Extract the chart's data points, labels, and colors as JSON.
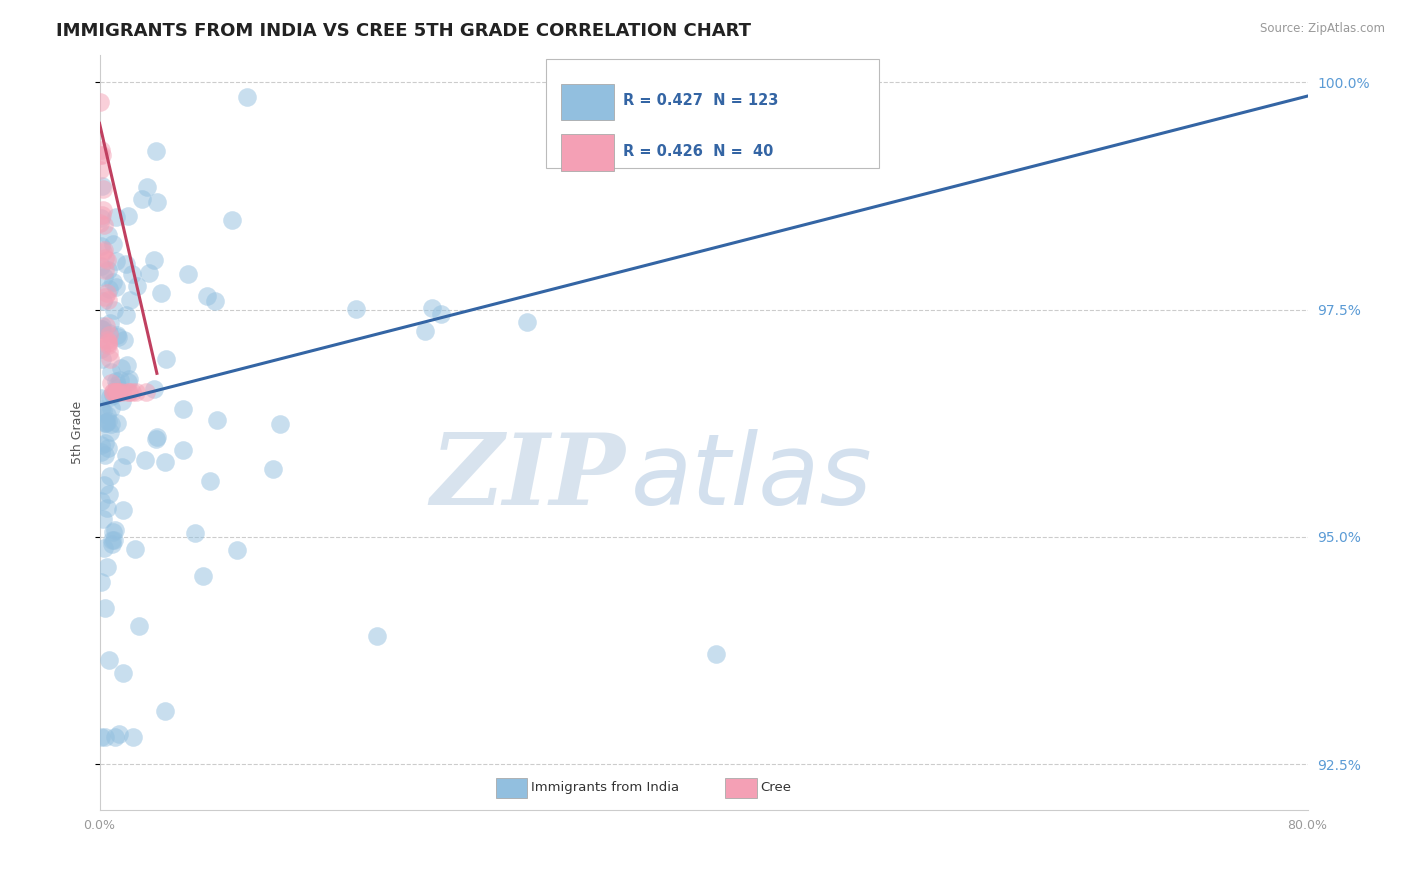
{
  "title": "IMMIGRANTS FROM INDIA VS CREE 5TH GRADE CORRELATION CHART",
  "source_text": "Source: ZipAtlas.com",
  "ylabel": "5th Grade",
  "xlim": [
    0.0,
    0.8
  ],
  "ylim": [
    0.92,
    1.003
  ],
  "xtick_vals": [
    0.0,
    0.2,
    0.4,
    0.6,
    0.8
  ],
  "xtick_labels": [
    "0.0%",
    "",
    "",
    "",
    "80.0%"
  ],
  "ytick_vals": [
    0.925,
    0.95,
    0.975,
    1.0
  ],
  "ytick_labels": [
    "92.5%",
    "95.0%",
    "97.5%",
    "100.0%"
  ],
  "blue_color": "#92bfdf",
  "pink_color": "#f4a0b5",
  "blue_line_color": "#3465a4",
  "pink_line_color": "#c04060",
  "blue_trend_x": [
    0.0,
    0.8
  ],
  "blue_trend_y": [
    0.9645,
    0.9985
  ],
  "pink_trend_x": [
    0.0,
    0.038
  ],
  "pink_trend_y": [
    0.9955,
    0.968
  ],
  "watermark_zip": "ZIP",
  "watermark_atlas": "atlas",
  "background_color": "#ffffff",
  "grid_color": "#cccccc",
  "title_fontsize": 13,
  "tick_fontsize": 9,
  "right_tick_color": "#5b9bd5",
  "legend_items": [
    {
      "label": "R = 0.427  N = 123",
      "color": "#92bfdf"
    },
    {
      "label": "R = 0.426  N =  40",
      "color": "#f4a0b5"
    }
  ],
  "bottom_legend": [
    {
      "label": "Immigrants from India",
      "color": "#92bfdf"
    },
    {
      "label": "Cree",
      "color": "#f4a0b5"
    }
  ]
}
